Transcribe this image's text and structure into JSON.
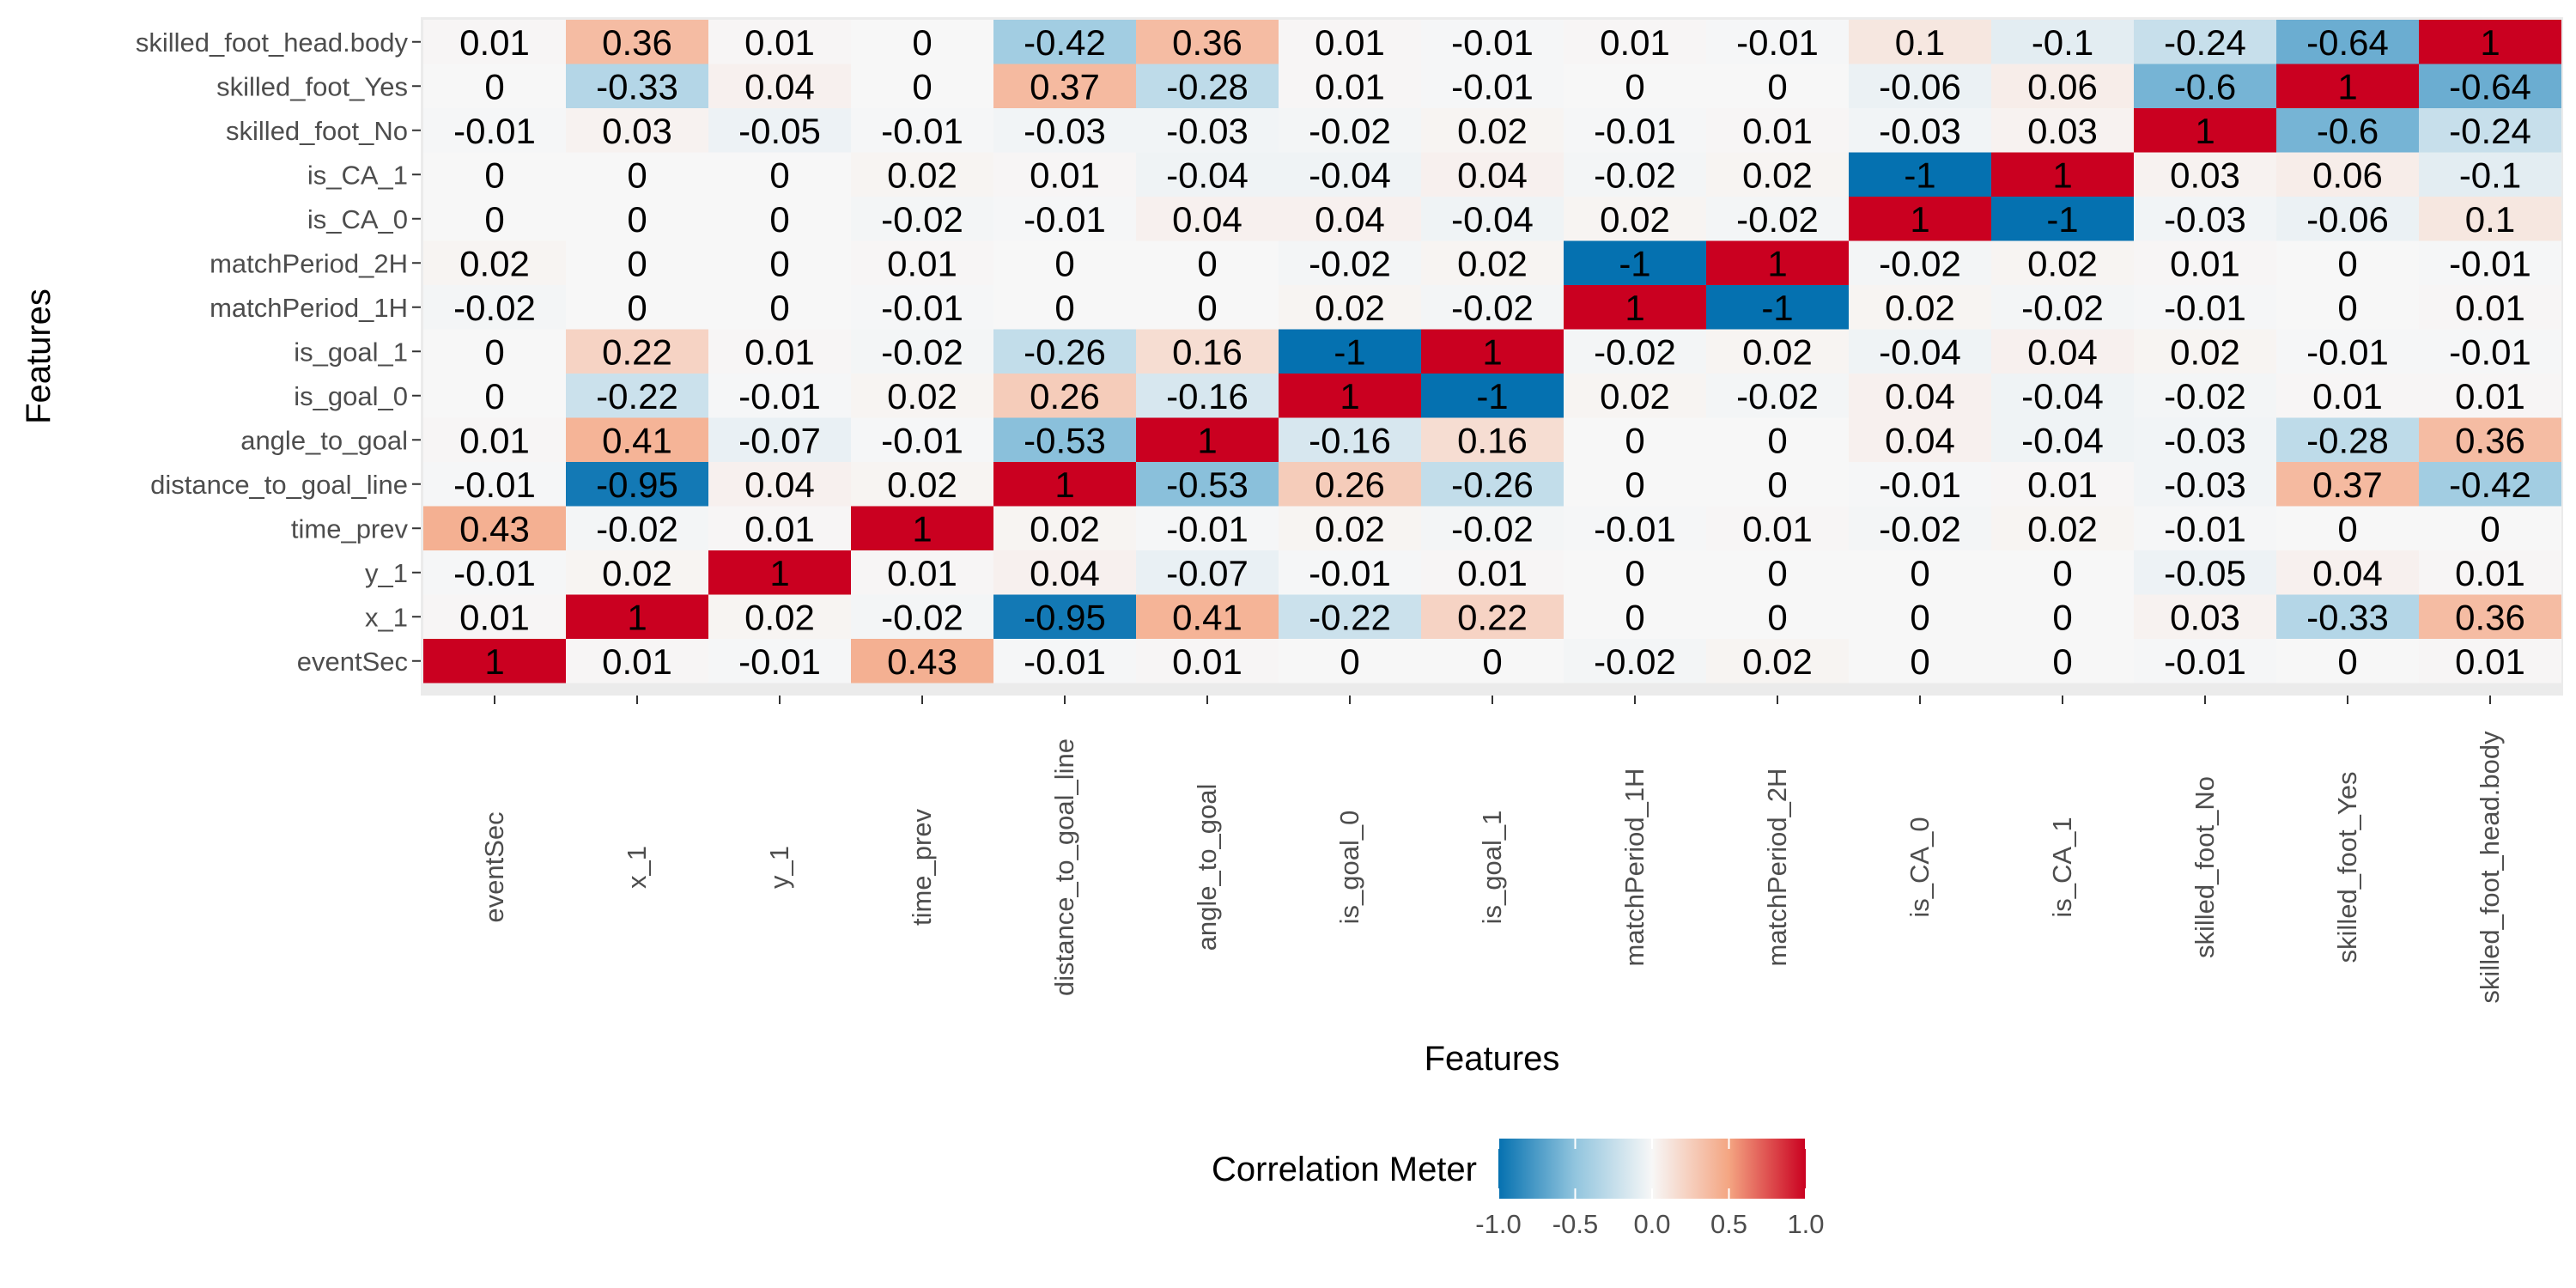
{
  "chart_data": {
    "type": "heatmap",
    "title": "",
    "xlabel": "Features",
    "ylabel": "Features",
    "x_categories": [
      "eventSec",
      "x_1",
      "y_1",
      "time_prev",
      "distance_to_goal_line",
      "angle_to_goal",
      "is_goal_0",
      "is_goal_1",
      "matchPeriod_1H",
      "matchPeriod_2H",
      "is_CA_0",
      "is_CA_1",
      "skilled_foot_No",
      "skilled_foot_Yes",
      "skilled_foot_head.body"
    ],
    "y_categories": [
      "eventSec",
      "x_1",
      "y_1",
      "time_prev",
      "distance_to_goal_line",
      "angle_to_goal",
      "is_goal_0",
      "is_goal_1",
      "matchPeriod_1H",
      "matchPeriod_2H",
      "is_CA_0",
      "is_CA_1",
      "skilled_foot_No",
      "skilled_foot_Yes",
      "skilled_foot_head.body"
    ],
    "values": [
      [
        1,
        0.01,
        -0.01,
        0.43,
        -0.01,
        0.01,
        0,
        0,
        -0.02,
        0.02,
        0,
        0,
        -0.01,
        0,
        0.01
      ],
      [
        0.01,
        1,
        0.02,
        -0.02,
        -0.95,
        0.41,
        -0.22,
        0.22,
        0,
        0,
        0,
        0,
        0.03,
        -0.33,
        0.36
      ],
      [
        -0.01,
        0.02,
        1,
        0.01,
        0.04,
        -0.07,
        -0.01,
        0.01,
        0,
        0,
        0,
        0,
        -0.05,
        0.04,
        0.01
      ],
      [
        0.43,
        -0.02,
        0.01,
        1,
        0.02,
        -0.01,
        0.02,
        -0.02,
        -0.01,
        0.01,
        -0.02,
        0.02,
        -0.01,
        0,
        0
      ],
      [
        -0.01,
        -0.95,
        0.04,
        0.02,
        1,
        -0.53,
        0.26,
        -0.26,
        0,
        0,
        -0.01,
        0.01,
        -0.03,
        0.37,
        -0.42
      ],
      [
        0.01,
        0.41,
        -0.07,
        -0.01,
        -0.53,
        1,
        -0.16,
        0.16,
        0,
        0,
        0.04,
        -0.04,
        -0.03,
        -0.28,
        0.36
      ],
      [
        0,
        -0.22,
        -0.01,
        0.02,
        0.26,
        -0.16,
        1,
        -1,
        0.02,
        -0.02,
        0.04,
        -0.04,
        -0.02,
        0.01,
        0.01
      ],
      [
        0,
        0.22,
        0.01,
        -0.02,
        -0.26,
        0.16,
        -1,
        1,
        -0.02,
        0.02,
        -0.04,
        0.04,
        0.02,
        -0.01,
        -0.01
      ],
      [
        -0.02,
        0,
        0,
        -0.01,
        0,
        0,
        0.02,
        -0.02,
        1,
        -1,
        0.02,
        -0.02,
        -0.01,
        0,
        0.01
      ],
      [
        0.02,
        0,
        0,
        0.01,
        0,
        0,
        -0.02,
        0.02,
        -1,
        1,
        -0.02,
        0.02,
        0.01,
        0,
        -0.01
      ],
      [
        0,
        0,
        0,
        -0.02,
        -0.01,
        0.04,
        0.04,
        -0.04,
        0.02,
        -0.02,
        1,
        -1,
        -0.03,
        -0.06,
        0.1
      ],
      [
        0,
        0,
        0,
        0.02,
        0.01,
        -0.04,
        -0.04,
        0.04,
        -0.02,
        0.02,
        -1,
        1,
        0.03,
        0.06,
        -0.1
      ],
      [
        -0.01,
        0.03,
        -0.05,
        -0.01,
        -0.03,
        -0.03,
        -0.02,
        0.02,
        -0.01,
        0.01,
        -0.03,
        0.03,
        1,
        -0.6,
        -0.24
      ],
      [
        0,
        -0.33,
        0.04,
        0,
        0.37,
        -0.28,
        0.01,
        -0.01,
        0,
        0,
        -0.06,
        0.06,
        -0.6,
        1,
        -0.64
      ],
      [
        0.01,
        0.36,
        0.01,
        0,
        -0.42,
        0.36,
        0.01,
        -0.01,
        0.01,
        -0.01,
        0.1,
        -0.1,
        -0.24,
        -0.64,
        1
      ]
    ],
    "color_range": [
      -1,
      1
    ],
    "colors": {
      "negative": "#0571b0",
      "mid_negative": "#92c5de",
      "neutral": "#f7f7f7",
      "mid_positive": "#f4a582",
      "positive": "#ca0020"
    },
    "legend": {
      "title": "Correlation Meter",
      "position": "bottom",
      "ticks": [
        "-1.0",
        "-0.5",
        "0.0",
        "0.5",
        "1.0"
      ]
    },
    "grid": false
  }
}
